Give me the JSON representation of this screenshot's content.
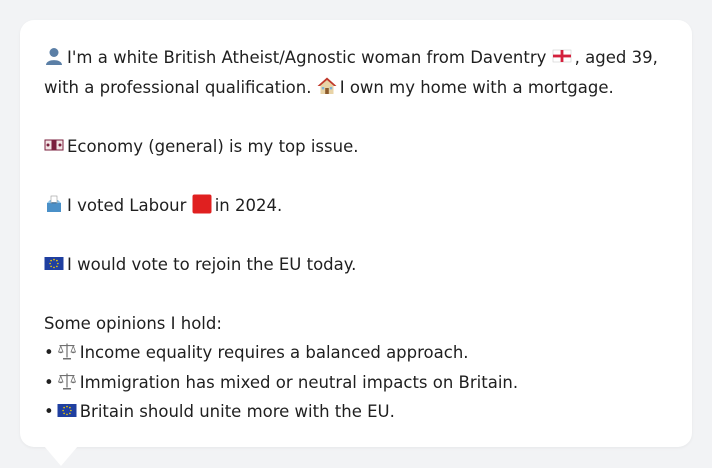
{
  "profile": {
    "intro_a": "I'm a white British Atheist/Agnostic woman from Daventry",
    "intro_b": ", aged 39,",
    "intro_c": "with a professional qualification.",
    "intro_d": "I own my home with a mortgage.",
    "issue": "Economy (general) is my top issue.",
    "vote_a": "I voted Labour",
    "vote_b": "in 2024.",
    "eu": "I would vote to rejoin the EU today."
  },
  "opinions": {
    "heading": "Some opinions I hold:",
    "bullet": "•",
    "items": [
      {
        "text": "Income equality requires a balanced approach.",
        "icon": "balance-scale-icon"
      },
      {
        "text": "Immigration has mixed or neutral impacts on Britain.",
        "icon": "balance-scale-icon"
      },
      {
        "text": "Britain should unite more with the EU.",
        "icon": "eu-flag-icon"
      }
    ]
  },
  "icons": {
    "person": "bust-silhouette-icon",
    "england_flag": "england-flag-icon",
    "house": "house-icon",
    "money": "money-banknote-icon",
    "ballot": "ballot-box-icon",
    "labour_square": "red-square-icon",
    "eu_flag": "eu-flag-icon"
  },
  "colors": {
    "background": "#f2f3f5",
    "card": "#ffffff",
    "text": "#1f1f1f",
    "labour_red": "#e02020",
    "eu_blue": "#1f3fa0"
  }
}
